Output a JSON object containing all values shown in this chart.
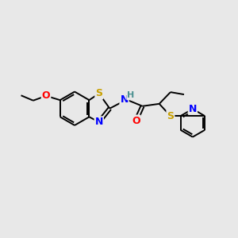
{
  "background_color": "#e8e8e8",
  "bond_color": "#000000",
  "atom_colors": {
    "S": "#c8a000",
    "N": "#0000ff",
    "O": "#ff0000",
    "H": "#4a9090",
    "C": "#000000"
  },
  "font_size": 9,
  "figsize": [
    3.0,
    3.0
  ],
  "dpi": 100
}
